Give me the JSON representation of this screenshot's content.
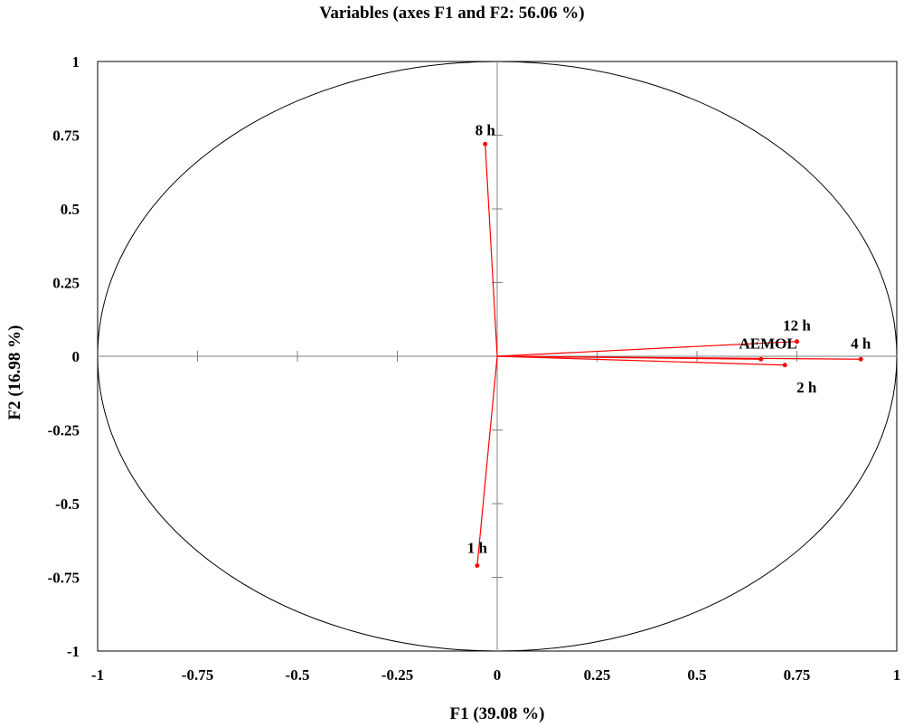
{
  "chart_data": {
    "type": "scatter",
    "title": "Variables (axes F1 and F2: 56.06 %)",
    "xlabel": "F1 (39.08 %)",
    "ylabel": "F2 (16.98 %)",
    "xlim": [
      -1,
      1
    ],
    "ylim": [
      -1,
      1
    ],
    "x_ticks": [
      "-1",
      "-0.75",
      "-0.5",
      "-0.25",
      "0",
      "0.25",
      "0.5",
      "0.75",
      "1"
    ],
    "y_ticks": [
      "1",
      "0.75",
      "0.5",
      "0.25",
      "0",
      "-0.25",
      "-0.5",
      "-0.75",
      "-1"
    ],
    "correlation_circle": true,
    "grid": false,
    "vector_color": "#ff0000",
    "points": [
      {
        "label": "8 h",
        "x": -0.03,
        "y": 0.72
      },
      {
        "label": "1 h",
        "x": -0.05,
        "y": -0.71
      },
      {
        "label": "12 h",
        "x": 0.75,
        "y": 0.05
      },
      {
        "label": "AEMOL",
        "x": 0.66,
        "y": -0.01
      },
      {
        "label": "4 h",
        "x": 0.91,
        "y": -0.01
      },
      {
        "label": "2 h",
        "x": 0.72,
        "y": -0.03
      }
    ]
  }
}
